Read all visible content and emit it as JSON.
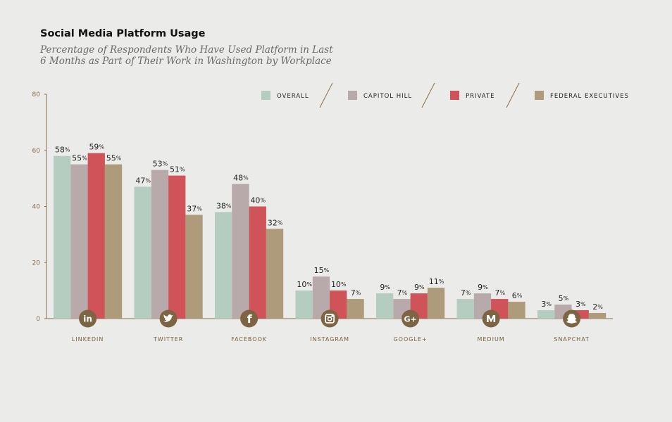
{
  "chart_data": {
    "type": "bar",
    "title": "Social Media Platform Usage",
    "subtitle": "Percentage of Respondents Who Have Used Platform in Last 6 Months as Part of Their Work in Washington by Workplace",
    "categories": [
      "LINKEDIN",
      "TWITTER",
      "FACEBOOK",
      "INSTAGRAM",
      "GOOGLE+",
      "MEDIUM",
      "SNAPCHAT"
    ],
    "category_icons": [
      "linkedin-icon",
      "twitter-icon",
      "facebook-icon",
      "instagram-icon",
      "google-plus-icon",
      "medium-icon",
      "snapchat-icon"
    ],
    "series": [
      {
        "name": "OVERALL",
        "color": "#b5cdc1",
        "values": [
          58,
          47,
          38,
          10,
          9,
          7,
          3
        ]
      },
      {
        "name": "CAPITOL HILL",
        "color": "#b8aaab",
        "values": [
          55,
          53,
          48,
          15,
          7,
          9,
          5
        ]
      },
      {
        "name": "PRIVATE",
        "color": "#cf5358",
        "values": [
          59,
          51,
          40,
          10,
          9,
          7,
          3
        ]
      },
      {
        "name": "FEDERAL EXECUTIVES",
        "color": "#ae9b7b",
        "values": [
          55,
          37,
          32,
          7,
          11,
          6,
          2
        ]
      }
    ],
    "value_suffix": "%",
    "ylim": [
      0,
      80
    ],
    "yticks": [
      0,
      20,
      40,
      60,
      80
    ],
    "legend_position": "top-right",
    "grid": false,
    "axis_color": "#8a6d4b",
    "icon_color": "#7d6443"
  }
}
